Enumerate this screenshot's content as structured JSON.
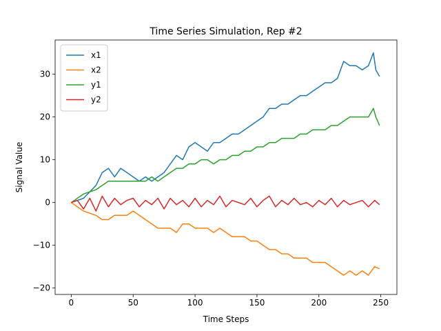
{
  "chart_data": {
    "type": "line",
    "title": "Time Series Simulation, Rep #2",
    "xlabel": "Time Steps",
    "ylabel": "Signal Value",
    "xlim": [
      -13,
      263
    ],
    "ylim": [
      -21.5,
      38
    ],
    "xticks": [
      0,
      50,
      100,
      150,
      200,
      250
    ],
    "yticks": [
      -20,
      -10,
      0,
      10,
      20,
      30
    ],
    "grid": false,
    "legend": "top-left",
    "series": [
      {
        "name": "x1",
        "color": "#1f77b4",
        "x": [
          0,
          10,
          20,
          25,
          30,
          35,
          40,
          45,
          50,
          55,
          60,
          65,
          70,
          75,
          80,
          85,
          90,
          95,
          100,
          105,
          110,
          115,
          120,
          125,
          130,
          135,
          140,
          145,
          150,
          155,
          160,
          165,
          170,
          175,
          180,
          185,
          190,
          195,
          200,
          205,
          210,
          215,
          220,
          225,
          230,
          235,
          240,
          244,
          246,
          249
        ],
        "values": [
          0,
          1,
          4,
          7,
          8,
          6,
          8,
          7,
          6,
          5,
          6,
          5,
          6,
          7,
          9,
          11,
          10,
          13,
          14,
          13,
          12,
          14,
          14,
          15,
          16,
          16,
          17,
          18,
          19,
          20,
          22,
          22,
          23,
          23,
          24,
          25,
          25,
          26,
          27,
          28,
          28,
          29,
          33,
          32,
          32,
          31,
          32,
          35,
          31,
          29.5
        ]
      },
      {
        "name": "x2",
        "color": "#ff7f0e",
        "x": [
          0,
          10,
          20,
          25,
          30,
          35,
          40,
          45,
          50,
          55,
          60,
          65,
          70,
          75,
          80,
          85,
          90,
          95,
          100,
          105,
          110,
          115,
          120,
          125,
          130,
          135,
          140,
          145,
          150,
          155,
          160,
          165,
          170,
          175,
          180,
          185,
          190,
          195,
          200,
          205,
          210,
          215,
          220,
          225,
          230,
          235,
          240,
          245,
          249
        ],
        "values": [
          0,
          -2,
          -3,
          -4,
          -4,
          -3,
          -3,
          -3,
          -2,
          -3,
          -4,
          -5,
          -6,
          -6,
          -6,
          -7,
          -5,
          -5,
          -6,
          -6,
          -6,
          -7,
          -6,
          -7,
          -8,
          -8,
          -8,
          -9,
          -9,
          -10,
          -11,
          -11,
          -12,
          -12,
          -13,
          -13,
          -13,
          -14,
          -14,
          -14,
          -15,
          -16,
          -17,
          -16,
          -17,
          -16,
          -17,
          -15,
          -15.5
        ]
      },
      {
        "name": "y1",
        "color": "#2ca02c",
        "x": [
          0,
          10,
          20,
          25,
          30,
          35,
          40,
          45,
          50,
          55,
          60,
          65,
          70,
          75,
          80,
          85,
          90,
          95,
          100,
          105,
          110,
          115,
          120,
          125,
          130,
          135,
          140,
          145,
          150,
          155,
          160,
          165,
          170,
          175,
          180,
          185,
          190,
          195,
          200,
          205,
          210,
          215,
          220,
          225,
          230,
          235,
          240,
          244,
          246,
          249
        ],
        "values": [
          0,
          2,
          3,
          4,
          5,
          5,
          5,
          5,
          5,
          5,
          5,
          6,
          5,
          6,
          7,
          8,
          8,
          9,
          9,
          10,
          10,
          9,
          10,
          10,
          11,
          11,
          12,
          12,
          13,
          13,
          14,
          14,
          15,
          15,
          15,
          16,
          16,
          17,
          17,
          17,
          18,
          18,
          19,
          20,
          20,
          20,
          20,
          22,
          20,
          18
        ]
      },
      {
        "name": "y2",
        "color": "#d62728",
        "x": [
          0,
          5,
          10,
          15,
          20,
          25,
          30,
          35,
          40,
          45,
          50,
          55,
          60,
          65,
          70,
          75,
          80,
          85,
          90,
          95,
          100,
          105,
          110,
          115,
          120,
          125,
          130,
          135,
          140,
          145,
          150,
          155,
          160,
          165,
          170,
          175,
          180,
          185,
          190,
          195,
          200,
          205,
          210,
          215,
          220,
          225,
          230,
          235,
          240,
          245,
          249
        ],
        "values": [
          0,
          0.5,
          -1.5,
          1,
          -2,
          1.5,
          -1,
          1,
          -0.5,
          0.5,
          1,
          -1,
          0.5,
          -0.5,
          1,
          -1.5,
          1,
          -0.5,
          0.5,
          -1,
          1,
          -1,
          0.5,
          -0.5,
          1.5,
          -1,
          0.5,
          0,
          -0.5,
          1,
          -1,
          0.5,
          1.5,
          -1,
          0.5,
          -0.5,
          1,
          -0.5,
          0,
          -1,
          0.5,
          -0.5,
          1,
          -1,
          0.5,
          -0.5,
          0,
          0.5,
          -1,
          0.5,
          -0.5
        ]
      }
    ]
  }
}
